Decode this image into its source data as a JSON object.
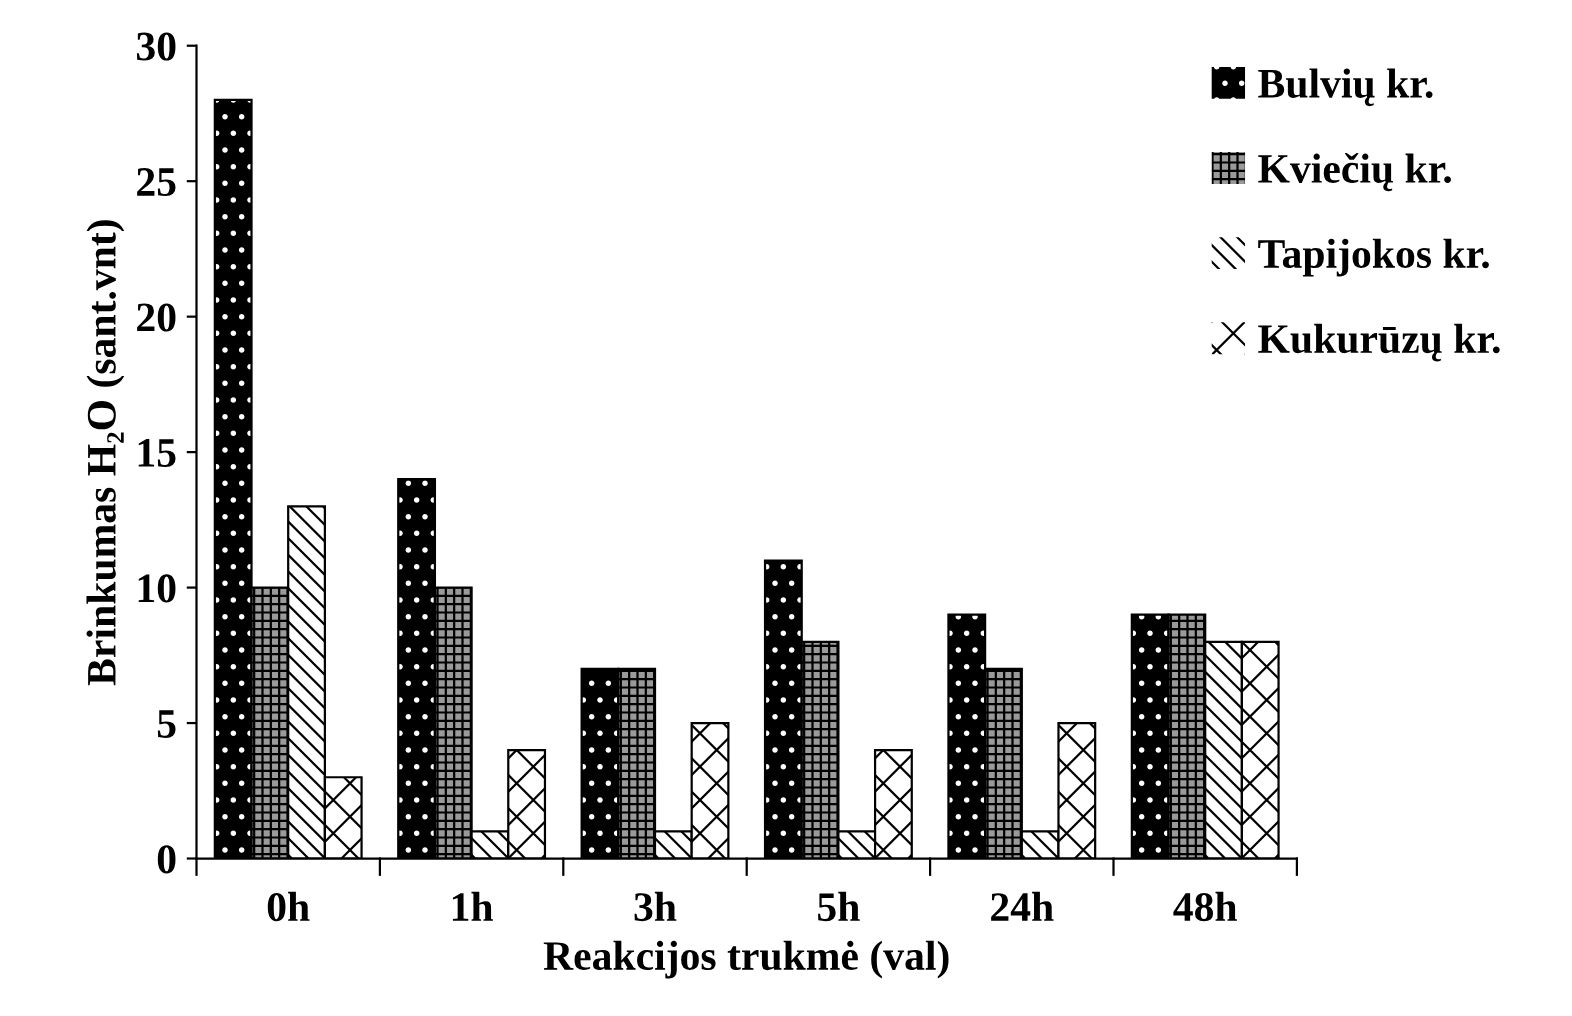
{
  "chart_data": {
    "type": "bar",
    "xlabel": "Reakcijos trukmė (val)",
    "ylabel": "Brinkumas H₂O (sant.vnt)",
    "categories": [
      "0h",
      "1h",
      "3h",
      "5h",
      "24h",
      "48h"
    ],
    "series": [
      {
        "name": "Bulvių kr.",
        "color": "#000000",
        "values": [
          28,
          14,
          7,
          11,
          9,
          9
        ]
      },
      {
        "name": "Kviečių kr.",
        "color": "#9a9a9a",
        "values": [
          10,
          10,
          7,
          8,
          7,
          9
        ]
      },
      {
        "name": "Tapijokos kr.",
        "color": "#ffffff",
        "values": [
          13,
          1,
          1,
          1,
          1,
          8
        ]
      },
      {
        "name": "Kukurūzų kr.",
        "color": "#ffffff",
        "values": [
          3,
          4,
          5,
          4,
          5,
          8
        ]
      }
    ],
    "ylim": [
      0,
      30
    ],
    "yticks": [
      0,
      5,
      10,
      15,
      20,
      25,
      30
    ],
    "grid": false,
    "legend": "top right"
  }
}
